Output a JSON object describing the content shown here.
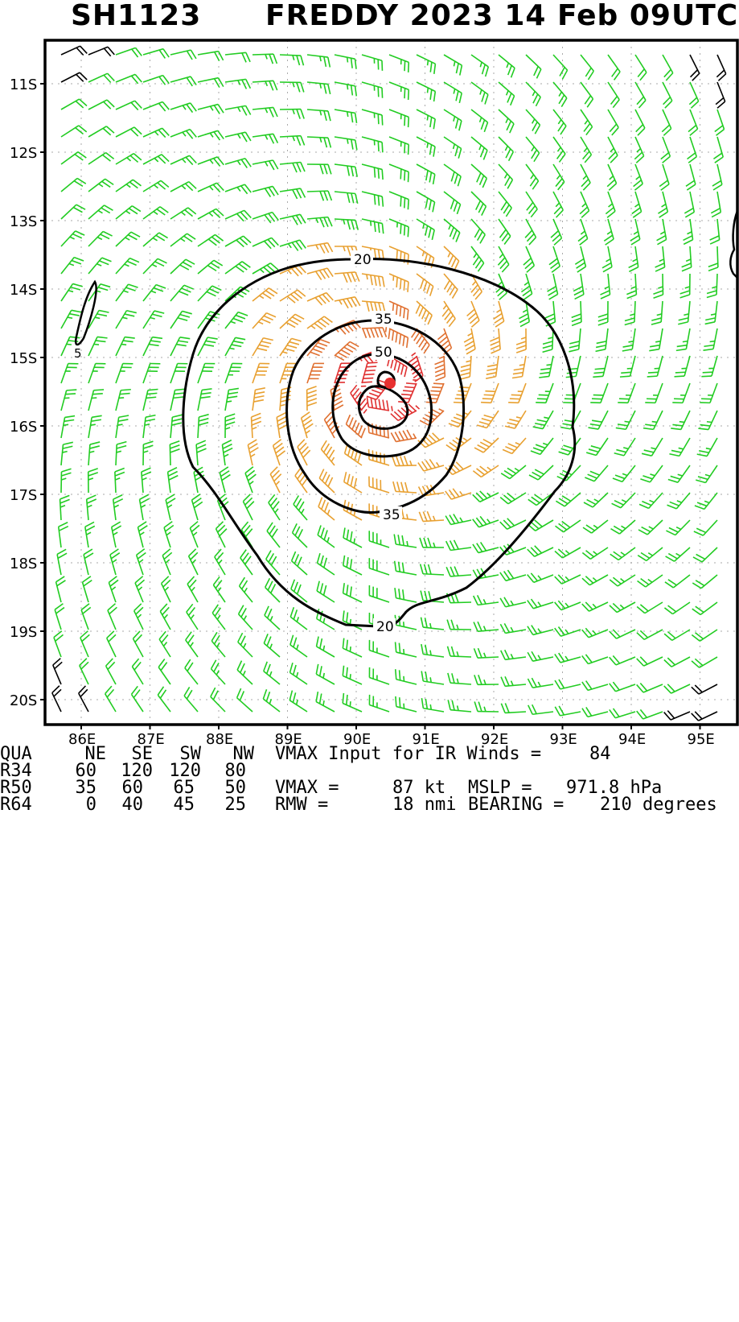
{
  "header": {
    "storm_id": "SH1123",
    "storm_line": "FREDDY 2023 14 Feb 09UTC"
  },
  "map": {
    "lat_labels": [
      "11S",
      "12S",
      "13S",
      "14S",
      "15S",
      "16S",
      "17S",
      "18S",
      "19S",
      "20S"
    ],
    "lon_labels": [
      "86E",
      "87E",
      "88E",
      "89E",
      "90E",
      "91E",
      "92E",
      "93E",
      "94E",
      "95E"
    ],
    "contour_labels": [
      "20",
      "35",
      "50",
      "35",
      "20",
      "5"
    ],
    "center": {
      "lon": 90.4,
      "lat": -15.35
    },
    "contour_levels_kt": [
      5,
      20,
      35,
      50,
      64
    ],
    "barb_colors": {
      "lt20": "#000000",
      "20to35": "#22cc22",
      "35to50": "#e8a030",
      "50to64": "#e07030",
      "ge64": "#e03030"
    },
    "center_marker_color": "#e83030"
  },
  "table": {
    "headers": [
      "QUA",
      "NE",
      "SE",
      "SW",
      "NW"
    ],
    "rows": [
      {
        "label": "R34",
        "values": [
          "60",
          "120",
          "120",
          "80"
        ]
      },
      {
        "label": "R50",
        "values": [
          "35",
          "60",
          "65",
          "50"
        ]
      },
      {
        "label": "R64",
        "values": [
          "0",
          "40",
          "45",
          "25"
        ]
      }
    ]
  },
  "info": {
    "vmax_input_label": "VMAX Input for IR Winds =",
    "vmax_input_value": "84",
    "vmax_label": "VMAX =",
    "vmax_value": "87 kt",
    "mslp_label": "MSLP =",
    "mslp_value": "971.8 hPa",
    "rmw_label": "RMW =",
    "rmw_value": "18 nmi",
    "bearing_label": "BEARING =",
    "bearing_value": "210 degrees"
  }
}
